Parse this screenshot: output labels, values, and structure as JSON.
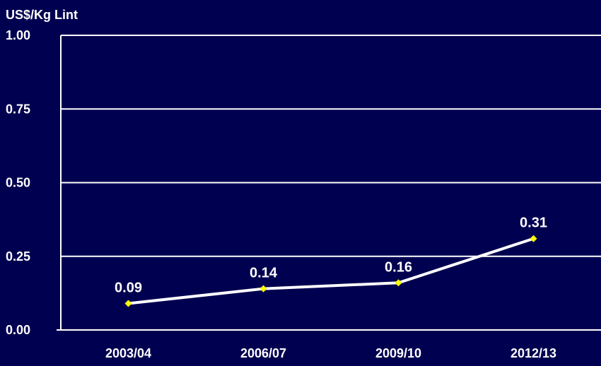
{
  "colors": {
    "background": "#000050",
    "axis": "#ffffff",
    "grid": "#ffffff",
    "line": "#ffffff",
    "marker": "#ffff00",
    "text": "#ffffff"
  },
  "chart_data": {
    "type": "line",
    "title": "",
    "ylabel": "US$/Kg Lint",
    "xlabel": "",
    "categories": [
      "2003/04",
      "2006/07",
      "2009/10",
      "2012/13"
    ],
    "series": [
      {
        "values": [
          0.09,
          0.14,
          0.16,
          0.31
        ]
      }
    ],
    "data_labels": [
      "0.09",
      "0.14",
      "0.16",
      "0.31"
    ],
    "ylim": [
      0,
      1
    ],
    "yticks": [
      "0.00",
      "0.25",
      "0.50",
      "0.75",
      "1.00"
    ],
    "grid": true,
    "legend": "none",
    "marker": "diamond"
  }
}
